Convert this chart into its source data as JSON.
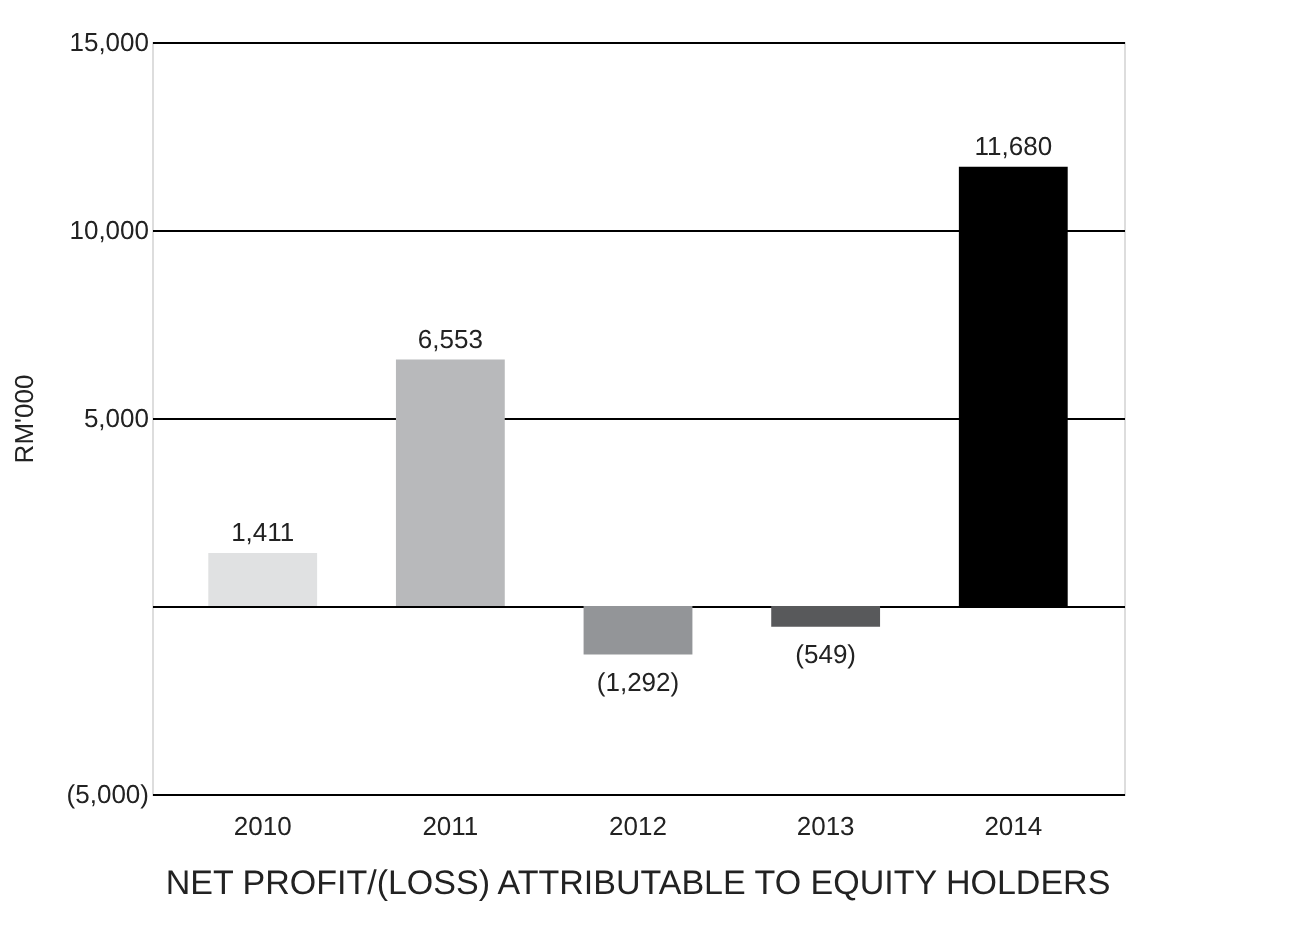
{
  "chart_data": {
    "type": "bar",
    "title": "NET PROFIT/(LOSS) ATTRIBUTABLE TO EQUITY HOLDERS",
    "ylabel": "RM'000",
    "categories": [
      "2010",
      "2011",
      "2012",
      "2013",
      "2014"
    ],
    "values": [
      1411,
      6553,
      -1292,
      -549,
      11680
    ],
    "colors": [
      "#e0e1e2",
      "#b8b9bb",
      "#939598",
      "#58595b",
      "#000000"
    ],
    "value_labels": [
      "1,411",
      "6,553",
      "(1,292)",
      "(549)",
      "11,680"
    ],
    "ylim": [
      -5000,
      15000
    ],
    "yticks": [
      {
        "value": -5000,
        "label": "(5,000)"
      },
      {
        "value": 0,
        "label": null
      },
      {
        "value": 5000,
        "label": "5,000"
      },
      {
        "value": 10000,
        "label": "10,000"
      },
      {
        "value": 15000,
        "label": "15,000"
      }
    ],
    "grid": "y"
  }
}
